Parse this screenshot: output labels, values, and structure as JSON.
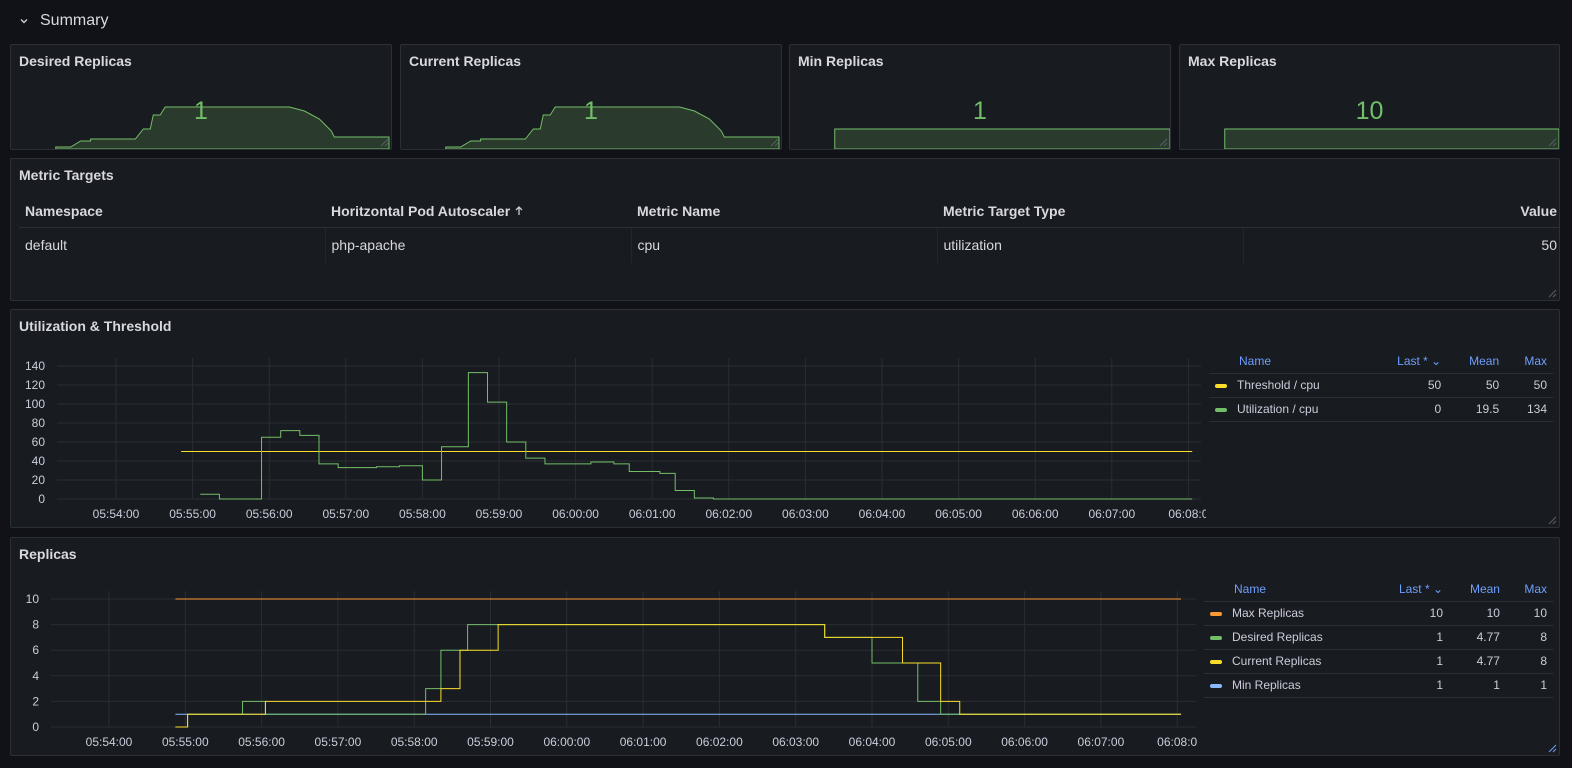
{
  "row": {
    "title": "Summary"
  },
  "stats": [
    {
      "title": "Desired Replicas",
      "value": "1"
    },
    {
      "title": "Current Replicas",
      "value": "1"
    },
    {
      "title": "Min Replicas",
      "value": "1"
    },
    {
      "title": "Max Replicas",
      "value": "10"
    }
  ],
  "metric_targets": {
    "title": "Metric Targets",
    "columns": [
      "Namespace",
      "Horitzontal Pod Autoscaler",
      "Metric Name",
      "Metric Target Type",
      "Value"
    ],
    "rows": [
      [
        "default",
        "php-apache",
        "cpu",
        "utilization",
        "50"
      ]
    ]
  },
  "util_panel": {
    "title": "Utilization & Threshold",
    "legend": {
      "headers": [
        "Name",
        "Last *",
        "Mean",
        "Max"
      ],
      "rows": [
        {
          "name": "Threshold / cpu",
          "last": "50",
          "mean": "50",
          "max": "50",
          "color": "#fade2a"
        },
        {
          "name": "Utilization / cpu",
          "last": "0",
          "mean": "19.5",
          "max": "134",
          "color": "#73bf69"
        }
      ]
    }
  },
  "replicas_panel": {
    "title": "Replicas",
    "legend": {
      "headers": [
        "Name",
        "Last *",
        "Mean",
        "Max"
      ],
      "rows": [
        {
          "name": "Max Replicas",
          "last": "10",
          "mean": "10",
          "max": "10",
          "color": "#ff9830"
        },
        {
          "name": "Desired Replicas",
          "last": "1",
          "mean": "4.77",
          "max": "8",
          "color": "#73bf69"
        },
        {
          "name": "Current Replicas",
          "last": "1",
          "mean": "4.77",
          "max": "8",
          "color": "#fade2a"
        },
        {
          "name": "Min Replicas",
          "last": "1",
          "mean": "1",
          "max": "1",
          "color": "#8ab8ff"
        }
      ]
    }
  },
  "chart_data": [
    {
      "type": "line",
      "title": "Utilization & Threshold",
      "x_ticks": [
        "05:54:00",
        "05:55:00",
        "05:56:00",
        "05:57:00",
        "05:58:00",
        "05:59:00",
        "06:00:00",
        "06:01:00",
        "06:02:00",
        "06:03:00",
        "06:04:00",
        "06:05:00",
        "06:06:00",
        "06:07:00",
        "06:08:0"
      ],
      "y_ticks": [
        0,
        20,
        40,
        60,
        80,
        100,
        120,
        140
      ],
      "ylim": [
        0,
        140
      ],
      "x_minutes_range": [
        -0.6,
        14.05
      ],
      "legend_position": "right",
      "series": [
        {
          "name": "Threshold / cpu",
          "color": "#fade2a",
          "step": false,
          "points": [
            [
              0.85,
              50
            ],
            [
              14.05,
              50
            ]
          ]
        },
        {
          "name": "Utilization / cpu",
          "color": "#73bf69",
          "step": true,
          "points": [
            [
              1.1,
              5
            ],
            [
              1.35,
              0
            ],
            [
              1.9,
              65
            ],
            [
              2.15,
              72
            ],
            [
              2.4,
              67
            ],
            [
              2.65,
              37
            ],
            [
              2.9,
              33
            ],
            [
              3.4,
              34
            ],
            [
              3.7,
              35
            ],
            [
              4.0,
              20
            ],
            [
              4.25,
              55
            ],
            [
              4.6,
              133
            ],
            [
              4.85,
              102
            ],
            [
              5.1,
              60
            ],
            [
              5.35,
              43
            ],
            [
              5.6,
              37
            ],
            [
              5.85,
              37
            ],
            [
              6.2,
              39
            ],
            [
              6.5,
              37
            ],
            [
              6.7,
              29
            ],
            [
              7.1,
              27
            ],
            [
              7.3,
              9
            ],
            [
              7.55,
              1
            ],
            [
              7.8,
              0
            ],
            [
              14.05,
              0
            ]
          ]
        }
      ]
    },
    {
      "type": "line",
      "title": "Replicas",
      "x_ticks": [
        "05:54:00",
        "05:55:00",
        "05:56:00",
        "05:57:00",
        "05:58:00",
        "05:59:00",
        "06:00:00",
        "06:01:00",
        "06:02:00",
        "06:03:00",
        "06:04:00",
        "06:05:00",
        "06:06:00",
        "06:07:00",
        "06:08:0"
      ],
      "y_ticks": [
        0,
        2,
        4,
        6,
        8,
        10
      ],
      "ylim": [
        0,
        10
      ],
      "x_minutes_range": [
        -0.55,
        14.05
      ],
      "legend_position": "right",
      "series": [
        {
          "name": "Max Replicas",
          "color": "#ff9830",
          "step": true,
          "points": [
            [
              0.87,
              10
            ],
            [
              14.05,
              10
            ]
          ]
        },
        {
          "name": "Min Replicas",
          "color": "#8ab8ff",
          "step": true,
          "points": [
            [
              0.87,
              1
            ],
            [
              14.05,
              1
            ]
          ]
        },
        {
          "name": "Desired Replicas",
          "color": "#73bf69",
          "step": true,
          "points": [
            [
              0.87,
              0
            ],
            [
              1.03,
              1
            ],
            [
              1.75,
              2
            ],
            [
              2.05,
              1
            ],
            [
              4.15,
              3
            ],
            [
              4.35,
              6
            ],
            [
              4.7,
              8
            ],
            [
              5.1,
              8
            ],
            [
              9.15,
              8
            ],
            [
              9.38,
              7
            ],
            [
              10.0,
              5
            ],
            [
              10.6,
              2
            ],
            [
              10.9,
              1
            ],
            [
              14.05,
              1
            ]
          ]
        },
        {
          "name": "Current Replicas",
          "color": "#fade2a",
          "step": true,
          "points": [
            [
              0.87,
              0
            ],
            [
              1.03,
              1
            ],
            [
              2.05,
              2
            ],
            [
              4.35,
              3
            ],
            [
              4.6,
              6
            ],
            [
              5.1,
              8
            ],
            [
              9.38,
              8
            ],
            [
              9.38,
              7
            ],
            [
              10.0,
              7
            ],
            [
              10.4,
              5
            ],
            [
              10.9,
              2
            ],
            [
              11.15,
              1
            ],
            [
              14.05,
              1
            ]
          ]
        }
      ]
    }
  ]
}
